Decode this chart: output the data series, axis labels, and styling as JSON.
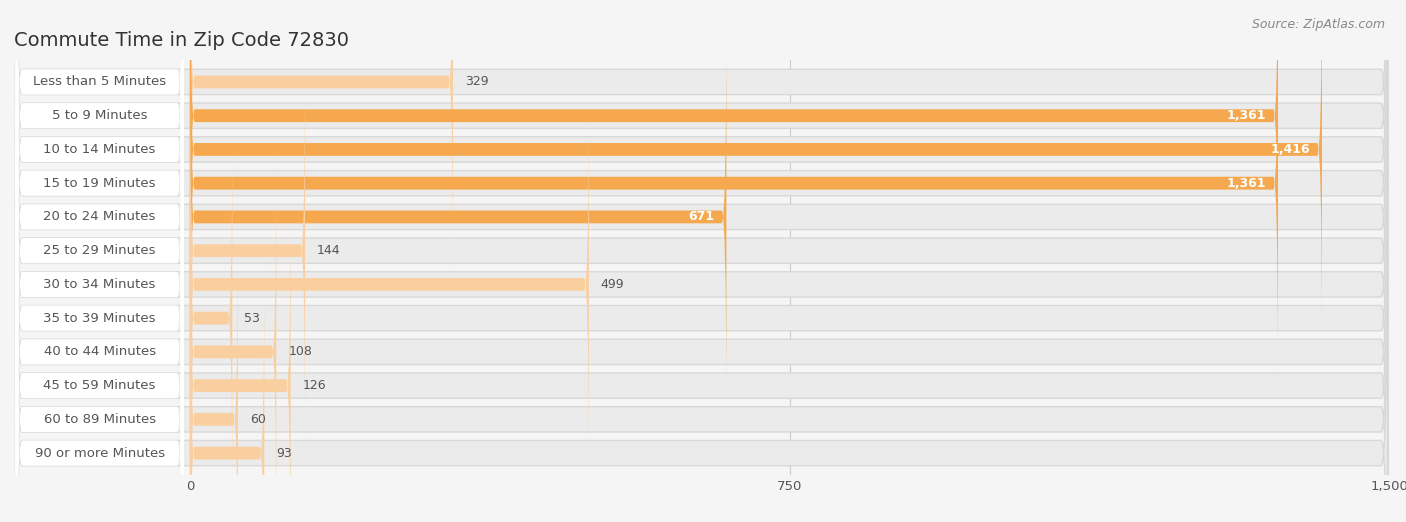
{
  "title": "Commute Time in Zip Code 72830",
  "source": "Source: ZipAtlas.com",
  "categories": [
    "Less than 5 Minutes",
    "5 to 9 Minutes",
    "10 to 14 Minutes",
    "15 to 19 Minutes",
    "20 to 24 Minutes",
    "25 to 29 Minutes",
    "30 to 34 Minutes",
    "35 to 39 Minutes",
    "40 to 44 Minutes",
    "45 to 59 Minutes",
    "60 to 89 Minutes",
    "90 or more Minutes"
  ],
  "values": [
    329,
    1361,
    1416,
    1361,
    671,
    144,
    499,
    53,
    108,
    126,
    60,
    93
  ],
  "bar_color_high": "#F5A84E",
  "bar_color_low": "#F9CFA0",
  "row_bg_color": "#EBEBEB",
  "row_edge_color": "#D8D8D8",
  "label_bg_color": "#FFFFFF",
  "plot_bg_color": "#F5F5F5",
  "fig_bg_color": "#F5F5F5",
  "xlim": [
    0,
    1500
  ],
  "xticks": [
    0,
    750,
    1500
  ],
  "title_fontsize": 14,
  "label_fontsize": 9.5,
  "value_fontsize": 9,
  "source_fontsize": 9,
  "text_color": "#555555",
  "title_color": "#333333",
  "value_color_inside": "#FFFFFF",
  "value_color_outside": "#555555",
  "high_threshold": 500,
  "grid_color": "#CCCCCC",
  "source_color": "#888888"
}
